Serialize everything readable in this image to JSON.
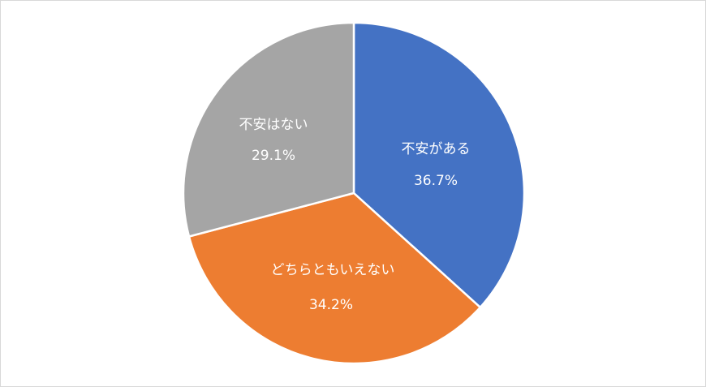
{
  "chart_data": {
    "type": "pie",
    "title": "",
    "start_angle": "12 o'clock, clockwise",
    "slices": [
      {
        "label": "不安がある",
        "value": 36.7,
        "value_label": "36.7%",
        "color": "#4472c4"
      },
      {
        "label": "どちらともいえない",
        "value": 34.2,
        "value_label": "34.2%",
        "color": "#ed7d31"
      },
      {
        "label": "不安はない",
        "value": 29.1,
        "value_label": "29.1%",
        "color": "#a5a5a5"
      }
    ],
    "legend": "none",
    "data_labels": "inside"
  }
}
